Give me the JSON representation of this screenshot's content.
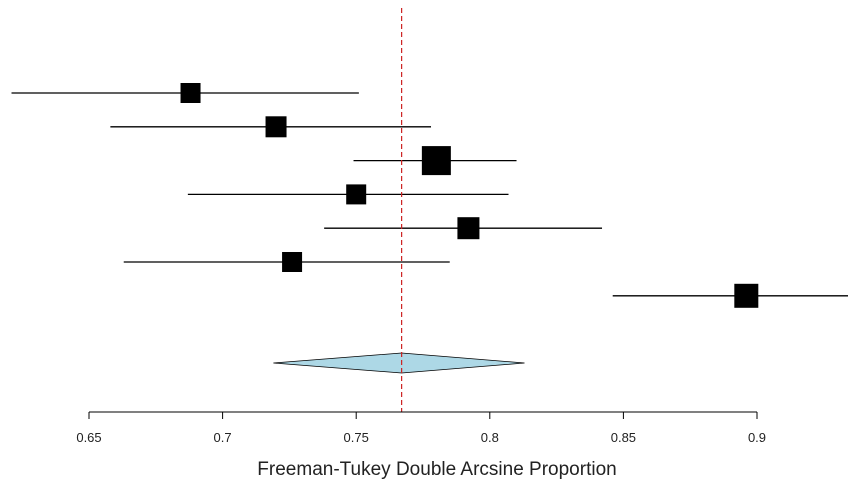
{
  "chart_data": {
    "type": "forest",
    "xlabel": "Freeman-Tukey Double Arcsine Proportion",
    "ylabel": "",
    "title": "",
    "xlim": [
      0.635,
      0.935
    ],
    "xticks": [
      0.65,
      0.7,
      0.75,
      0.8,
      0.85,
      0.9
    ],
    "xtick_labels": [
      "0.65",
      "0.7",
      "0.75",
      "0.8",
      "0.85",
      "0.9"
    ],
    "reference_line": {
      "x": 0.767,
      "style": "dashed",
      "color": "#cc2222"
    },
    "studies": [
      {
        "estimate": 0.688,
        "lower": 0.621,
        "upper": 0.751,
        "weight": 1.0
      },
      {
        "estimate": 0.72,
        "lower": 0.658,
        "upper": 0.778,
        "weight": 1.05
      },
      {
        "estimate": 0.78,
        "lower": 0.749,
        "upper": 0.81,
        "weight": 1.45
      },
      {
        "estimate": 0.75,
        "lower": 0.687,
        "upper": 0.807,
        "weight": 1.0
      },
      {
        "estimate": 0.792,
        "lower": 0.738,
        "upper": 0.842,
        "weight": 1.1
      },
      {
        "estimate": 0.726,
        "lower": 0.663,
        "upper": 0.785,
        "weight": 1.0
      },
      {
        "estimate": 0.896,
        "lower": 0.846,
        "upper": 0.94,
        "weight": 1.2
      }
    ],
    "summary": {
      "estimate": 0.767,
      "lower": 0.719,
      "upper": 0.813,
      "fill": "#add8e6"
    },
    "marker_color": "#000000",
    "grid": false
  }
}
